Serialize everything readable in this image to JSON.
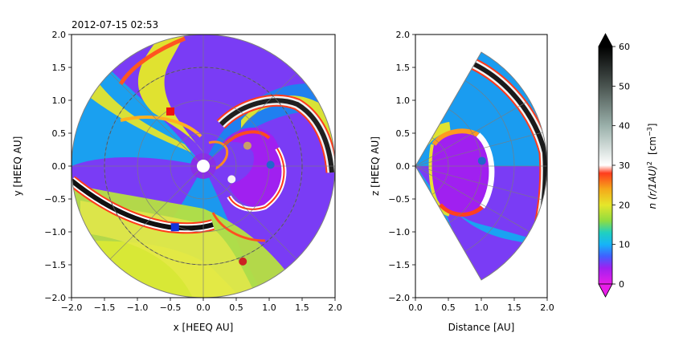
{
  "timestamp": "2012-07-15 02:53",
  "chart_data": [
    {
      "type": "heatmap",
      "id": "equatorial",
      "title": "2012-07-15 02:53",
      "xlabel": "x [HEEQ AU]",
      "ylabel": "y [HEEQ AU]",
      "xlim": [
        -2.0,
        2.0
      ],
      "ylim": [
        -2.0,
        2.0
      ],
      "xticks": [
        -2.0,
        -1.5,
        -1.0,
        -0.5,
        0.0,
        0.5,
        1.0,
        1.5,
        2.0
      ],
      "yticks": [
        -2.0,
        -1.5,
        -1.0,
        -0.5,
        0.0,
        0.5,
        1.0,
        1.5,
        2.0
      ],
      "xtick_labels": [
        "−2.0",
        "−1.5",
        "−1.0",
        "−0.5",
        "0.0",
        "0.5",
        "1.0",
        "1.5",
        "2.0"
      ],
      "ytick_labels": [
        "−2.0",
        "−1.5",
        "−1.0",
        "−0.5",
        "0.0",
        "0.5",
        "1.0",
        "1.5",
        "2.0"
      ],
      "domain_radius": 2.0,
      "sun_radius": 0.1,
      "markers": [
        {
          "name": "red-square",
          "shape": "square",
          "color": "#ee1111",
          "x": -0.5,
          "y": 0.83
        },
        {
          "name": "blue-square",
          "shape": "square",
          "color": "#1133dd",
          "x": -0.43,
          "y": -0.93
        },
        {
          "name": "tan-dot",
          "shape": "circle",
          "color": "#c89f6a",
          "x": 0.67,
          "y": 0.31
        },
        {
          "name": "white-dot",
          "shape": "circle",
          "color": "#f5f5f5",
          "x": 0.43,
          "y": -0.2
        },
        {
          "name": "blue-dot",
          "shape": "circle",
          "color": "#2266cc",
          "x": 1.02,
          "y": 0.02
        },
        {
          "name": "red-dot",
          "shape": "circle",
          "color": "#cc2222",
          "x": 0.6,
          "y": -1.45
        }
      ]
    },
    {
      "type": "heatmap",
      "id": "meridional",
      "xlabel": "Distance [AU]",
      "ylabel": "z [HEEQ AU]",
      "xlim": [
        0.0,
        2.0
      ],
      "ylim": [
        -2.0,
        2.0
      ],
      "xticks": [
        0.0,
        0.5,
        1.0,
        1.5,
        2.0
      ],
      "yticks": [
        -2.0,
        -1.5,
        -1.0,
        -0.5,
        0.0,
        0.5,
        1.0,
        1.5,
        2.0
      ],
      "xtick_labels": [
        "0.0",
        "0.5",
        "1.0",
        "1.5",
        "2.0"
      ],
      "ytick_labels": [
        "−2.0",
        "−1.5",
        "−1.0",
        "−0.5",
        "0.0",
        "0.5",
        "1.0",
        "1.5",
        "2.0"
      ],
      "wedge_half_angle_deg": 60,
      "markers": [
        {
          "name": "blue-dot",
          "shape": "circle",
          "color": "#2266cc",
          "x": 1.01,
          "y": 0.08
        }
      ]
    },
    {
      "type": "colorbar",
      "id": "density-colorbar",
      "label_main": "n (r/1AU)",
      "label_exponent": "2",
      "label_units": "[cm",
      "label_units_exponent": "−3",
      "label_units_close": "]",
      "vmin": 0,
      "vmax": 60,
      "ticks": [
        0,
        10,
        20,
        30,
        40,
        50,
        60
      ],
      "tick_labels": [
        "0",
        "10",
        "20",
        "30",
        "40",
        "50",
        "60"
      ],
      "extend": "both",
      "colormap": [
        {
          "v": 0,
          "color": "#e81ee8"
        },
        {
          "v": 4,
          "color": "#a020f0"
        },
        {
          "v": 7,
          "color": "#4060ff"
        },
        {
          "v": 10,
          "color": "#16b4f8"
        },
        {
          "v": 13,
          "color": "#20d0c0"
        },
        {
          "v": 16,
          "color": "#90dc40"
        },
        {
          "v": 20,
          "color": "#e6e62a"
        },
        {
          "v": 24,
          "color": "#f5a81a"
        },
        {
          "v": 28,
          "color": "#ff3c1c"
        },
        {
          "v": 30,
          "color": "#ffffff"
        },
        {
          "v": 40,
          "color": "#9ab0aa"
        },
        {
          "v": 50,
          "color": "#4a5450"
        },
        {
          "v": 60,
          "color": "#000000"
        }
      ]
    }
  ]
}
